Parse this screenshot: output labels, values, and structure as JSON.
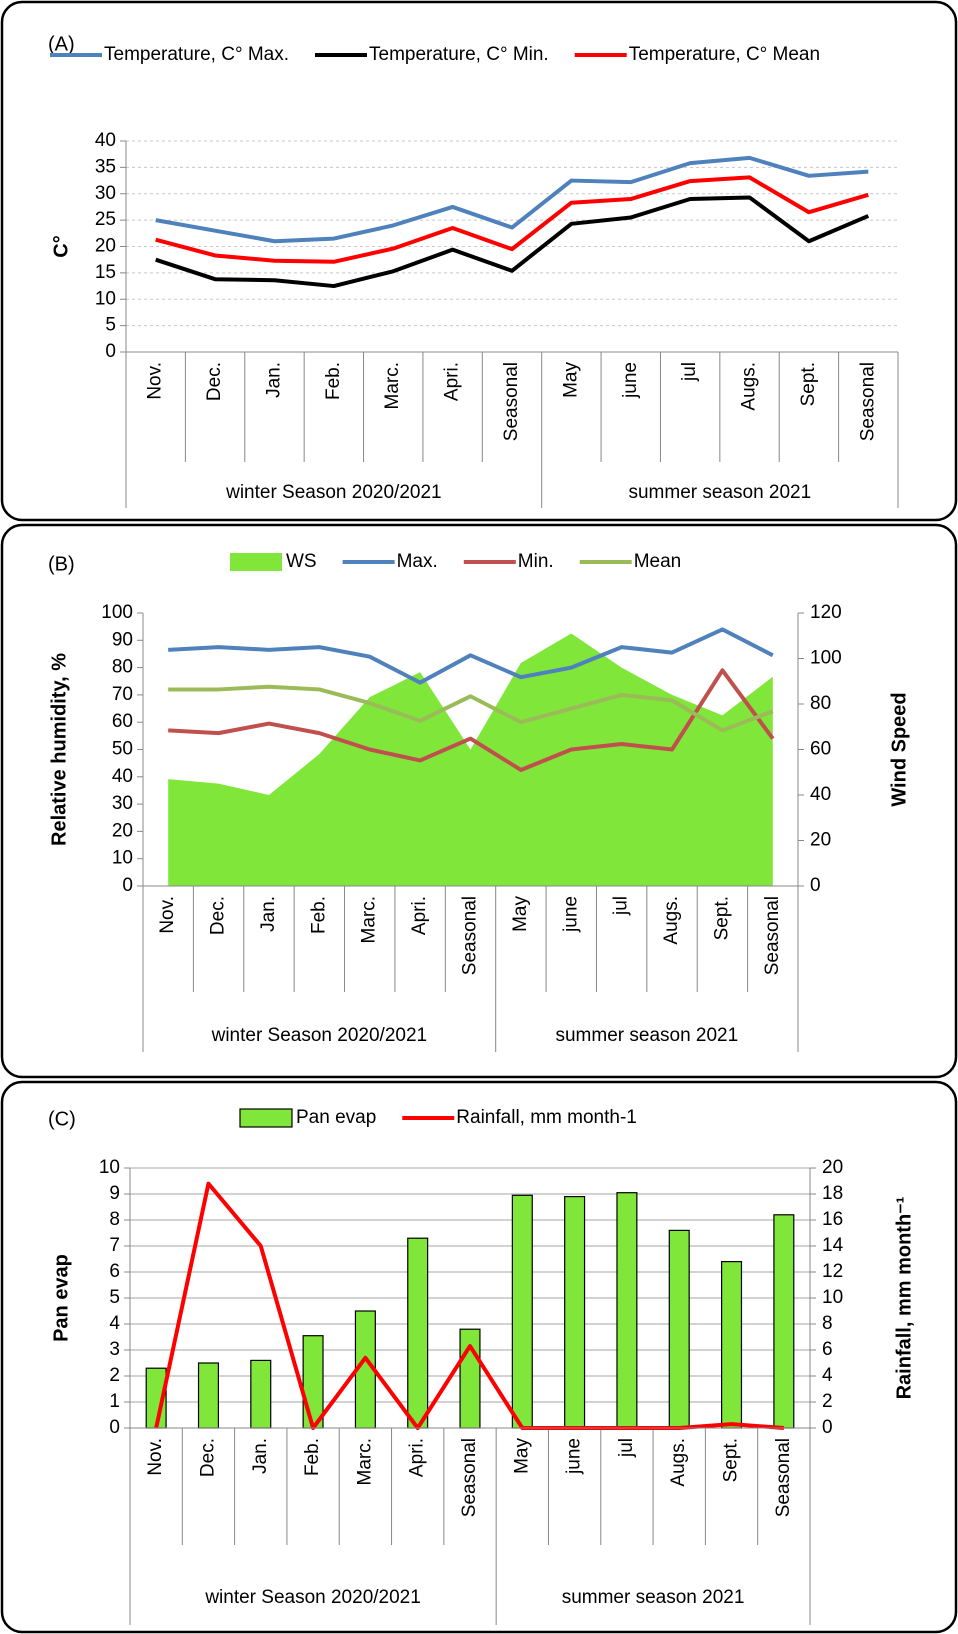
{
  "chart_data": [
    {
      "panel_label": "(A)",
      "type": "line",
      "grid": true,
      "legend": "top",
      "category_groups": [
        {
          "name": "winter Season 2020/2021",
          "categories": [
            "Nov.",
            "Dec.",
            "Jan.",
            "Feb.",
            "Marc.",
            "Apri.",
            "Seasonal"
          ]
        },
        {
          "name": "summer season 2021",
          "categories": [
            "May",
            "june",
            "jul",
            "Augs.",
            "Sept.",
            "Seasonal"
          ]
        }
      ],
      "series": [
        {
          "name": "Temperature, C° Max.",
          "type": "line",
          "color": "#4f81bd",
          "values": [
            25,
            23,
            21,
            21.5,
            24,
            27.5,
            23.6,
            32.5,
            32.2,
            35.8,
            36.8,
            33.4,
            34.2
          ]
        },
        {
          "name": "Temperature, C° Min.",
          "type": "line",
          "color": "#000000",
          "values": [
            17.5,
            13.8,
            13.6,
            12.5,
            15.3,
            19.4,
            15.4,
            24.3,
            25.5,
            29,
            29.3,
            21,
            25.8
          ]
        },
        {
          "name": "Temperature, C° Mean",
          "type": "line",
          "color": "#ff0000",
          "values": [
            21.3,
            18.3,
            17.3,
            17.1,
            19.6,
            23.5,
            19.5,
            28.3,
            29,
            32.4,
            33.1,
            26.5,
            29.8
          ]
        }
      ],
      "y_label": "C°",
      "ylim": [
        0,
        40
      ],
      "yticks": [
        0,
        5,
        10,
        15,
        20,
        25,
        30,
        35,
        40
      ]
    },
    {
      "panel_label": "(B)",
      "type": "combo",
      "grid": false,
      "legend": "top",
      "category_groups": [
        {
          "name": "winter Season 2020/2021",
          "categories": [
            "Nov.",
            "Dec.",
            "Jan.",
            "Feb.",
            "Marc.",
            "Apri.",
            "Seasonal"
          ]
        },
        {
          "name": "summer season 2021",
          "categories": [
            "May",
            "june",
            "jul",
            "Augs.",
            "Sept.",
            "Seasonal"
          ]
        }
      ],
      "series": [
        {
          "name": "WS",
          "type": "area",
          "axis": "y2",
          "color": "#80e63a",
          "values": [
            47,
            45,
            40,
            58,
            83,
            94,
            60,
            98,
            111,
            96,
            84,
            75,
            92
          ]
        },
        {
          "name": "Max.",
          "type": "line",
          "color": "#4f81bd",
          "values": [
            86.5,
            87.5,
            86.5,
            87.5,
            84,
            74.5,
            84.5,
            76.5,
            80,
            87.5,
            85.5,
            94,
            84.5
          ]
        },
        {
          "name": "Min.",
          "type": "line",
          "color": "#c0504d",
          "values": [
            57,
            56,
            59.5,
            56,
            50,
            46,
            54,
            42.5,
            50,
            52,
            50,
            79,
            54
          ]
        },
        {
          "name": "Mean",
          "type": "line",
          "color": "#9bbb59",
          "values": [
            72,
            72,
            73,
            72,
            67,
            60.5,
            69.5,
            60,
            65,
            70,
            68,
            57,
            64
          ]
        }
      ],
      "y_label": "Relative humidity, %",
      "ylim": [
        0,
        100
      ],
      "yticks": [
        0,
        10,
        20,
        30,
        40,
        50,
        60,
        70,
        80,
        90,
        100
      ],
      "y2_label": "Wind  Speed",
      "y2lim": [
        0,
        120
      ],
      "y2ticks": [
        0,
        20,
        40,
        60,
        80,
        100,
        120
      ]
    },
    {
      "panel_label": "(C)",
      "type": "combo",
      "grid": true,
      "legend": "top",
      "category_groups": [
        {
          "name": "winter Season 2020/2021",
          "categories": [
            "Nov.",
            "Dec.",
            "Jan.",
            "Feb.",
            "Marc.",
            "Apri.",
            "Seasonal"
          ]
        },
        {
          "name": "summer season 2021",
          "categories": [
            "May",
            "june",
            "jul",
            "Augs.",
            "Sept.",
            "Seasonal"
          ]
        }
      ],
      "series": [
        {
          "name": "Pan evap",
          "type": "bar",
          "color": "#80e63a",
          "values": [
            2.3,
            2.5,
            2.6,
            3.55,
            4.5,
            7.3,
            3.8,
            8.95,
            8.9,
            9.05,
            7.6,
            6.4,
            8.2
          ]
        },
        {
          "name": "Rainfall, mm month-1",
          "type": "line",
          "axis": "y2",
          "color": "#ff0000",
          "values": [
            0,
            18.8,
            14,
            0,
            5.4,
            0,
            6.3,
            0,
            0,
            0,
            0,
            0.3,
            0
          ]
        }
      ],
      "y_label": "Pan evap",
      "ylim": [
        0,
        10
      ],
      "yticks": [
        0,
        1,
        2,
        3,
        4,
        5,
        6,
        7,
        8,
        9,
        10
      ],
      "y2_label": "Rainfall, mm month⁻¹",
      "y2lim": [
        0,
        20
      ],
      "y2ticks": [
        0,
        2,
        4,
        6,
        8,
        10,
        12,
        14,
        16,
        18,
        20
      ]
    }
  ]
}
